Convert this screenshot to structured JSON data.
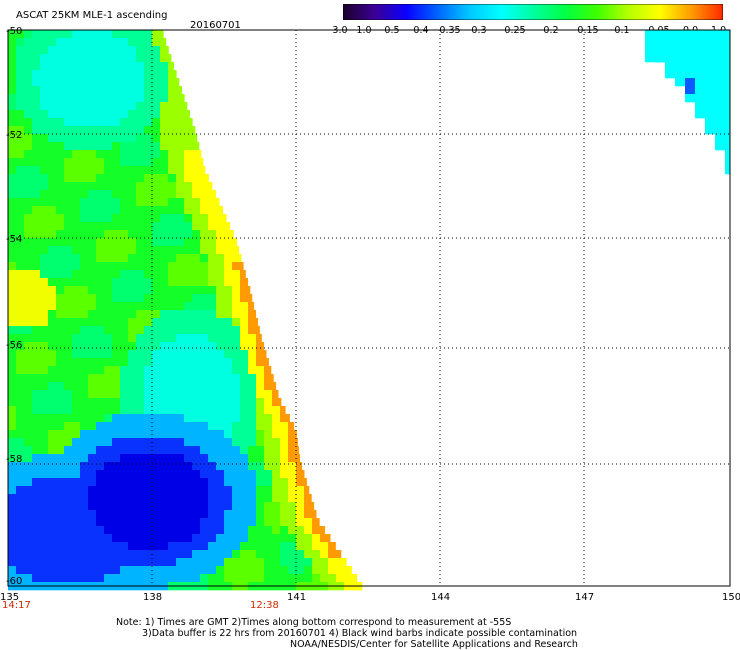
{
  "header": {
    "title": "ASCAT 25KM MLE-1 ascending",
    "date": "20160701"
  },
  "colorbar": {
    "labels": [
      "-3.0",
      "-1.0",
      "-0.5",
      "-0.4",
      "-0.35",
      "-0.3",
      "-0.25",
      "-0.2",
      "-0.15",
      "-0.1",
      "-0.05",
      "0.0",
      "1.0"
    ],
    "colors": [
      "#1a0028",
      "#3c0096",
      "#0a00ff",
      "#0066ff",
      "#00c8ff",
      "#00ffff",
      "#00ffa0",
      "#00ff46",
      "#3cff00",
      "#b4ff00",
      "#ffff00",
      "#ff9b00",
      "#ff2800"
    ]
  },
  "axes": {
    "lat_labels": [
      "-50",
      "-52",
      "-54",
      "-56",
      "-58",
      "-60"
    ],
    "lon_labels": [
      "135",
      "138",
      "141",
      "144",
      "147",
      "150"
    ],
    "lat_range": [
      -50,
      -60
    ],
    "lon_range": [
      135,
      150
    ],
    "grid": "dotted"
  },
  "times": {
    "left": "14:17",
    "center": "12:38"
  },
  "notes": {
    "line1": "Note: 1) Times are GMT 2)Times along bottom correspond to measurement at -55S",
    "line2": "3)Data buffer is 22 hrs from 20160701 4) Black wind barbs indicate possible contamination",
    "line3": "NOAA/NESDIS/Center for Satellite Applications and Research"
  }
}
